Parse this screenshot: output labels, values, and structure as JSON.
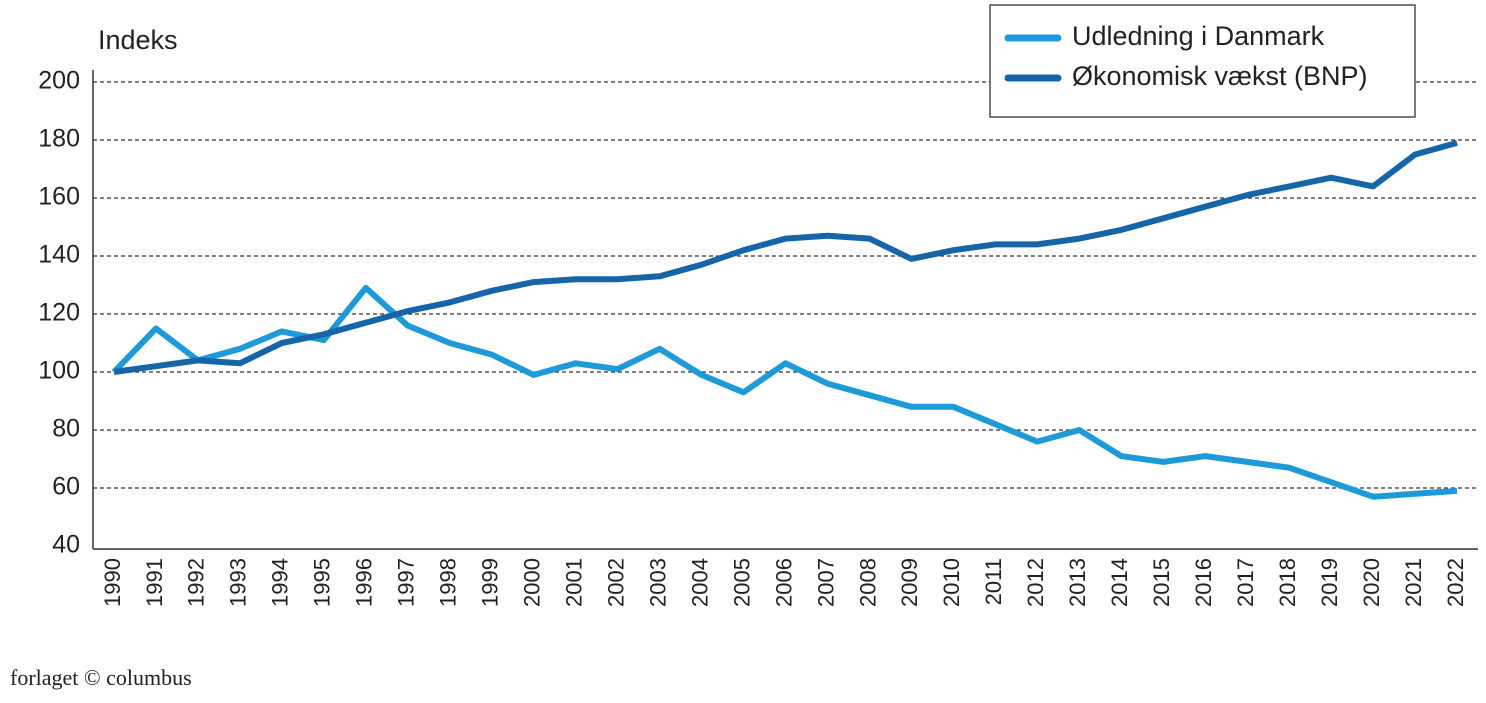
{
  "chart_data": {
    "type": "line",
    "y_label": "Indeks",
    "categories": [
      "1990",
      "1991",
      "1992",
      "1993",
      "1994",
      "1995",
      "1996",
      "1997",
      "1998",
      "1999",
      "2000",
      "2001",
      "2002",
      "2003",
      "2004",
      "2005",
      "2006",
      "2007",
      "2008",
      "2009",
      "2010",
      "2011",
      "2012",
      "2013",
      "2014",
      "2015",
      "2016",
      "2017",
      "2018",
      "2019",
      "2020",
      "2021",
      "2022"
    ],
    "series": [
      {
        "name": "Udledning i Danmark",
        "color": "#1e9ad8",
        "values": [
          100,
          115,
          104,
          108,
          114,
          111,
          129,
          116,
          110,
          106,
          99,
          103,
          101,
          108,
          99,
          93,
          103,
          96,
          92,
          88,
          88,
          82,
          76,
          80,
          71,
          69,
          71,
          69,
          67,
          62,
          57,
          58,
          59
        ]
      },
      {
        "name": "Økonomisk vækst (BNP)",
        "color": "#1565a8",
        "values": [
          100,
          102,
          104,
          103,
          110,
          113,
          117,
          121,
          124,
          128,
          131,
          132,
          132,
          133,
          137,
          142,
          146,
          147,
          146,
          139,
          142,
          144,
          144,
          146,
          149,
          153,
          157,
          161,
          164,
          167,
          164,
          175,
          179
        ]
      }
    ],
    "ylim": [
      40,
      200
    ],
    "yticks": [
      40,
      60,
      80,
      100,
      120,
      140,
      160,
      180,
      200
    ],
    "grid": true,
    "legend": "top-right"
  },
  "footer": "forlaget © columbus"
}
